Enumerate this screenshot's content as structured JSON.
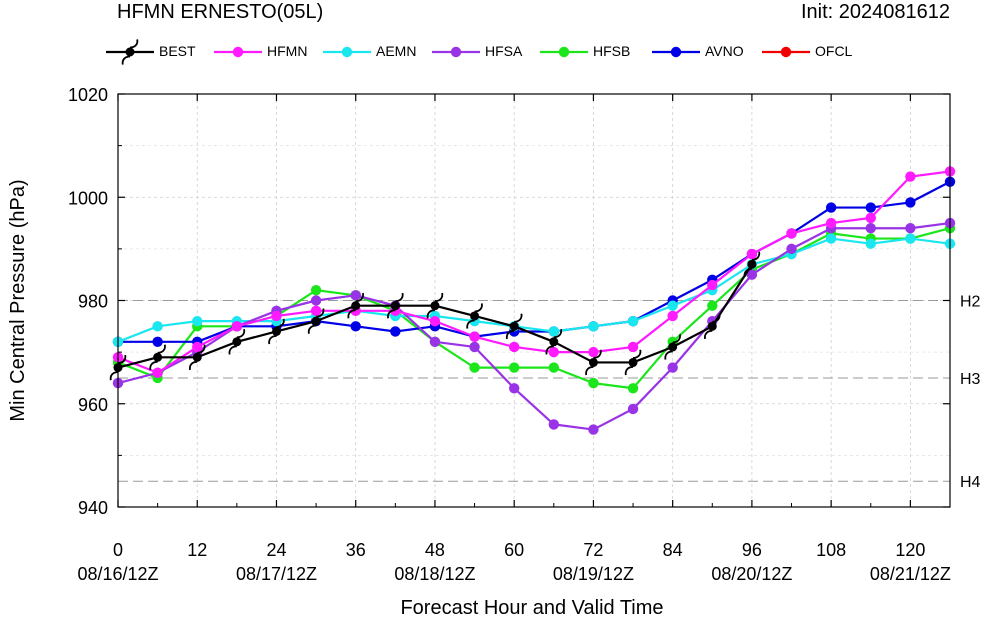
{
  "title_left": "HFMN ERNESTO(05L)",
  "title_right": "Init: 2024081612",
  "colors": {
    "BEST": "#000000",
    "HFMN": "#ff1aff",
    "AEMN": "#1ae6f0",
    "HFSA": "#9933e6",
    "HFSB": "#1ae61a",
    "AVNO": "#0000e6",
    "OFCL": "#f00000"
  },
  "chart_data": {
    "type": "line",
    "xlabel": "Forecast Hour and Valid Time",
    "ylabel": "Min Central Pressure (hPa)",
    "xlim": [
      0,
      126
    ],
    "ylim": [
      940,
      1020
    ],
    "x_ticks": [
      0,
      12,
      24,
      36,
      48,
      60,
      72,
      84,
      96,
      108,
      120
    ],
    "x_date_labels": {
      "0": "08/16/12Z",
      "24": "08/17/12Z",
      "48": "08/18/12Z",
      "72": "08/19/12Z",
      "96": "08/20/12Z",
      "120": "08/21/12Z"
    },
    "y_ticks": [
      940,
      960,
      980,
      1000,
      1020
    ],
    "reference_lines": [
      {
        "label": "H2",
        "value": 980
      },
      {
        "label": "H3",
        "value": 965
      },
      {
        "label": "H4",
        "value": 945
      }
    ],
    "grid": true,
    "legend_position": "top",
    "series": [
      {
        "name": "BEST",
        "x": [
          0,
          6,
          12,
          18,
          24,
          30,
          36,
          42,
          48,
          54,
          60,
          66,
          72,
          78,
          84,
          90,
          96
        ],
        "values": [
          967,
          969,
          969,
          972,
          974,
          976,
          979,
          979,
          979,
          977,
          975,
          972,
          968,
          968,
          971,
          975,
          987
        ]
      },
      {
        "name": "HFMN",
        "x": [
          0,
          6,
          12,
          18,
          24,
          30,
          36,
          42,
          48,
          54,
          60,
          66,
          72,
          78,
          84,
          90,
          96,
          102,
          108,
          114,
          120,
          126
        ],
        "values": [
          969,
          966,
          971,
          975,
          977,
          978,
          978,
          978,
          976,
          973,
          971,
          970,
          970,
          971,
          977,
          983,
          989,
          993,
          995,
          996,
          1004,
          1005
        ]
      },
      {
        "name": "AEMN",
        "x": [
          0,
          6,
          12,
          18,
          24,
          30,
          36,
          42,
          48,
          54,
          60,
          66,
          72,
          78,
          84,
          90,
          96,
          102,
          108,
          114,
          120,
          126
        ],
        "values": [
          972,
          975,
          976,
          976,
          976,
          977,
          978,
          977,
          977,
          976,
          975,
          974,
          975,
          976,
          979,
          982,
          987,
          989,
          992,
          991,
          992,
          991
        ]
      },
      {
        "name": "HFSA",
        "x": [
          0,
          6,
          12,
          18,
          24,
          30,
          36,
          42,
          48,
          54,
          60,
          66,
          72,
          78,
          84,
          90,
          96,
          102,
          108,
          114,
          120,
          126
        ],
        "values": [
          964,
          966,
          970,
          975,
          978,
          980,
          981,
          979,
          972,
          971,
          963,
          956,
          955,
          959,
          967,
          976,
          985,
          990,
          994,
          994,
          994,
          995
        ]
      },
      {
        "name": "HFSB",
        "x": [
          0,
          6,
          12,
          18,
          24,
          30,
          36,
          42,
          48,
          54,
          60,
          66,
          72,
          78,
          84,
          90,
          96,
          102,
          108,
          114,
          120,
          126
        ],
        "values": [
          968,
          965,
          975,
          975,
          977,
          982,
          981,
          978,
          972,
          967,
          967,
          967,
          964,
          963,
          972,
          979,
          986,
          989,
          993,
          992,
          992,
          994
        ]
      },
      {
        "name": "AVNO",
        "x": [
          0,
          6,
          12,
          18,
          24,
          30,
          36,
          42,
          48,
          54,
          60,
          66,
          72,
          78,
          84,
          90,
          96,
          102,
          108,
          114,
          120,
          126
        ],
        "values": [
          972,
          972,
          972,
          975,
          975,
          976,
          975,
          974,
          975,
          973,
          974,
          974,
          975,
          976,
          980,
          984,
          989,
          993,
          998,
          998,
          999,
          1003
        ]
      },
      {
        "name": "OFCL",
        "x": [],
        "values": []
      }
    ]
  }
}
